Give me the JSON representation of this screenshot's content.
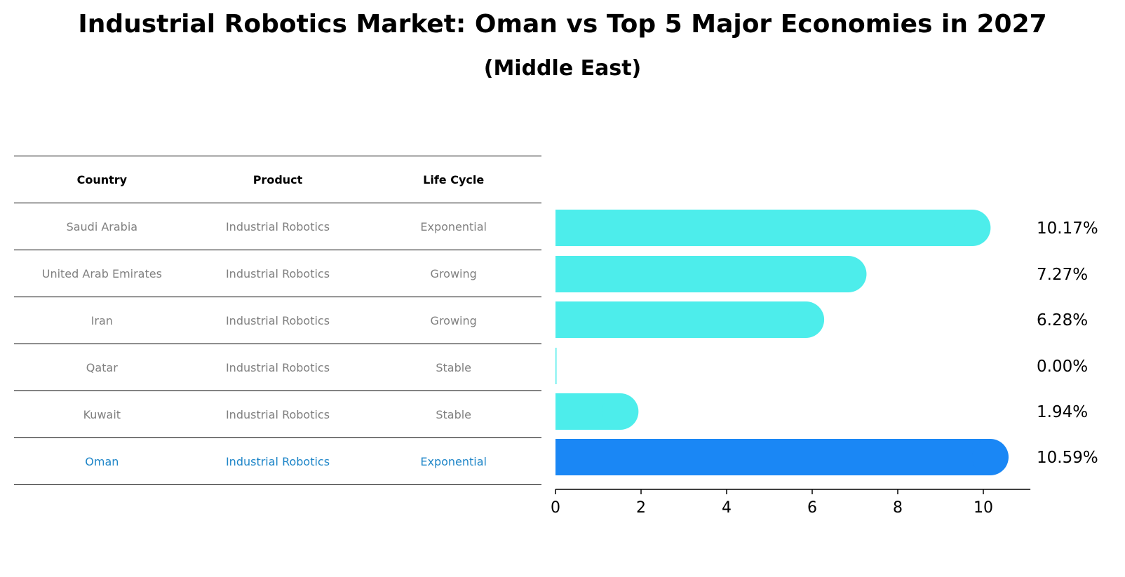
{
  "title": "Industrial Robotics Market: Oman vs Top 5 Major Economies in 2027",
  "subtitle": "(Middle East)",
  "table": {
    "headers": [
      "Country",
      "Product",
      "Life Cycle"
    ],
    "rows": [
      [
        "Saudi Arabia",
        "Industrial Robotics",
        "Exponential"
      ],
      [
        "United Arab Emirates",
        "Industrial Robotics",
        "Growing"
      ],
      [
        "Iran",
        "Industrial Robotics",
        "Growing"
      ],
      [
        "Qatar",
        "Industrial Robotics",
        "Stable"
      ],
      [
        "Kuwait",
        "Industrial Robotics",
        "Stable"
      ],
      [
        "Oman",
        "Industrial Robotics",
        "Exponential"
      ]
    ],
    "highlight_index": 5
  },
  "chart_data": {
    "type": "bar",
    "orientation": "horizontal",
    "categories": [
      "Saudi Arabia",
      "United Arab Emirates",
      "Iran",
      "Qatar",
      "Kuwait",
      "Oman"
    ],
    "values": [
      10.17,
      7.27,
      6.28,
      0.0,
      1.94,
      10.59
    ],
    "value_labels": [
      "10.17%",
      "7.27%",
      "6.28%",
      "0.00%",
      "1.94%",
      "10.59%"
    ],
    "xlim": [
      0,
      11.1
    ],
    "xticks": [
      0,
      2,
      4,
      6,
      8,
      10
    ],
    "grid": false,
    "colors": {
      "default": "#4DEDEB",
      "highlight": "#1A87F5"
    },
    "highlight_index": 5
  }
}
